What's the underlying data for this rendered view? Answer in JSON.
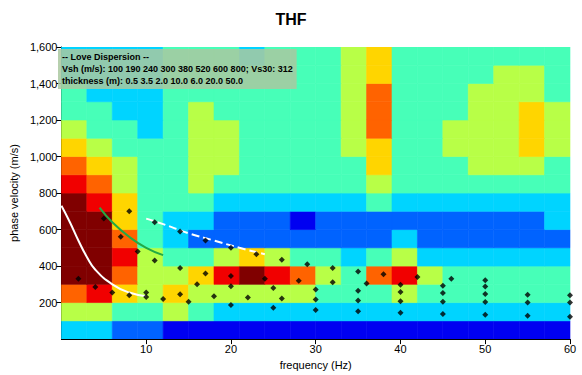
{
  "chart_data": {
    "type": "heatmap",
    "title": "THF",
    "xlabel": "frequency (Hz)",
    "ylabel": "phase velocity (m/s)",
    "annotations": [
      "-- Love Dispersion --",
      "Vsh (m/s): 100 190 240 300 380 520 600 800; Vs30: 312",
      "thickness (m): 0.5 3.5 2.0 10.0 6.0 20.0 50.0"
    ],
    "xlim": [
      0,
      60
    ],
    "ylim": [
      0,
      1600
    ],
    "xticks": [
      10,
      20,
      30,
      40,
      50,
      60
    ],
    "yticks": [
      200,
      400,
      600,
      800,
      1000,
      1200,
      1400,
      1600
    ],
    "grid": false,
    "heatmap": {
      "x_edges": [
        0,
        3,
        6,
        9,
        12,
        15,
        18,
        21,
        24,
        27,
        30,
        33,
        36,
        39,
        42,
        45,
        48,
        51,
        54,
        57,
        60
      ],
      "y_edges": [
        0,
        100,
        200,
        300,
        400,
        500,
        600,
        700,
        800,
        900,
        1000,
        1100,
        1200,
        1300,
        1400,
        1500,
        1600
      ],
      "zlim": [
        0,
        9
      ],
      "cells": [
        [
          3,
          3,
          2,
          2,
          1,
          1,
          1,
          1,
          1,
          1,
          1,
          1,
          1,
          1,
          1,
          1,
          1,
          1,
          1,
          1
        ],
        [
          5,
          5,
          4,
          4,
          5,
          4,
          3,
          3,
          3,
          3,
          3,
          3,
          3,
          3,
          3,
          3,
          3,
          3,
          3,
          3
        ],
        [
          7,
          8,
          6,
          5,
          6,
          5,
          5,
          5,
          5,
          5,
          4,
          4,
          4,
          5,
          4,
          4,
          4,
          4,
          4,
          4
        ],
        [
          9,
          9,
          7,
          5,
          5,
          6,
          8,
          9,
          8,
          7,
          5,
          4,
          7,
          8,
          5,
          4,
          4,
          4,
          4,
          4
        ],
        [
          9,
          9,
          8,
          5,
          4,
          4,
          5,
          6,
          5,
          4,
          4,
          3,
          4,
          5,
          3,
          3,
          3,
          3,
          3,
          3
        ],
        [
          9,
          9,
          7,
          4,
          3,
          2,
          2,
          2,
          2,
          2,
          2,
          2,
          2,
          3,
          2,
          2,
          2,
          2,
          2,
          2
        ],
        [
          9,
          9,
          6,
          4,
          3,
          3,
          2,
          2,
          2,
          1,
          2,
          2,
          2,
          2,
          2,
          2,
          2,
          2,
          2,
          3
        ],
        [
          9,
          8,
          6,
          4,
          4,
          4,
          3,
          3,
          3,
          3,
          3,
          3,
          4,
          3,
          3,
          3,
          3,
          3,
          3,
          3
        ],
        [
          8,
          7,
          5,
          4,
          4,
          5,
          4,
          4,
          4,
          4,
          4,
          4,
          5,
          4,
          4,
          4,
          4,
          4,
          4,
          4
        ],
        [
          7,
          6,
          5,
          4,
          4,
          5,
          5,
          4,
          4,
          4,
          4,
          4,
          6,
          4,
          4,
          4,
          5,
          5,
          5,
          4
        ],
        [
          6,
          5,
          4,
          4,
          4,
          5,
          5,
          4,
          4,
          4,
          4,
          5,
          6,
          4,
          4,
          5,
          5,
          5,
          6,
          5
        ],
        [
          5,
          4,
          4,
          3,
          4,
          5,
          5,
          4,
          4,
          4,
          4,
          5,
          7,
          4,
          4,
          5,
          5,
          5,
          6,
          5
        ],
        [
          4,
          4,
          3,
          3,
          4,
          5,
          4,
          4,
          4,
          4,
          4,
          5,
          7,
          4,
          4,
          4,
          5,
          5,
          6,
          5
        ],
        [
          4,
          3,
          3,
          3,
          4,
          4,
          4,
          4,
          4,
          4,
          4,
          5,
          7,
          4,
          4,
          4,
          5,
          5,
          5,
          4
        ],
        [
          3,
          3,
          3,
          3,
          4,
          4,
          4,
          4,
          4,
          4,
          4,
          5,
          6,
          4,
          4,
          4,
          4,
          5,
          5,
          4
        ],
        [
          3,
          3,
          3,
          3,
          4,
          4,
          4,
          3,
          4,
          4,
          4,
          5,
          6,
          4,
          4,
          4,
          4,
          4,
          4,
          4
        ]
      ]
    },
    "series": [
      {
        "type": "line",
        "line_style": "solid",
        "color": "#ffffff",
        "x": [
          0,
          1,
          2,
          3,
          4,
          6,
          8,
          10
        ],
        "values": [
          730,
          640,
          540,
          450,
          380,
          300,
          255,
          235
        ]
      },
      {
        "type": "line",
        "line_style": "dashed",
        "color": "#ffffff",
        "x": [
          10,
          12,
          15,
          18,
          21,
          24
        ],
        "values": [
          660,
          630,
          580,
          540,
          500,
          465
        ]
      },
      {
        "type": "line",
        "line_style": "solid",
        "color": "#22aa44",
        "x": [
          4.5,
          6,
          8,
          10,
          12
        ],
        "values": [
          720,
          640,
          560,
          500,
          460
        ]
      },
      {
        "type": "scatter",
        "marker": "diamond",
        "color": "#000000",
        "x": [
          2,
          4,
          6,
          8,
          10,
          12,
          15,
          20,
          25,
          30,
          35,
          40,
          45,
          50,
          55,
          60
        ],
        "values": [
          330,
          285,
          255,
          240,
          230,
          220,
          205,
          187,
          172,
          160,
          152,
          144,
          138,
          133,
          128,
          123
        ]
      },
      {
        "type": "scatter",
        "marker": "diamond",
        "color": "#000000",
        "x": [
          10,
          14,
          18,
          22,
          26,
          30,
          35,
          40,
          45,
          50,
          55,
          60
        ],
        "values": [
          255,
          245,
          235,
          228,
          222,
          217,
          212,
          208,
          205,
          203,
          201,
          200
        ]
      },
      {
        "type": "scatter",
        "marker": "diamond",
        "color": "#000000",
        "x": [
          16,
          20,
          25,
          30,
          35,
          40,
          45,
          50,
          55,
          60
        ],
        "values": [
          300,
          290,
          280,
          272,
          265,
          258,
          252,
          247,
          243,
          240
        ]
      },
      {
        "type": "scatter",
        "marker": "diamond",
        "color": "#000000",
        "x": [
          5,
          7,
          9,
          11,
          14,
          17,
          20,
          24,
          28,
          32,
          36,
          40,
          45,
          50
        ],
        "values": [
          660,
          560,
          480,
          430,
          390,
          360,
          345,
          330,
          320,
          312,
          305,
          298,
          292,
          288
        ]
      },
      {
        "type": "scatter",
        "marker": "diamond",
        "color": "#000000",
        "x": [
          8,
          11,
          14,
          17,
          20,
          23,
          26,
          29,
          32,
          35,
          38,
          42,
          46,
          50
        ],
        "values": [
          700,
          640,
          590,
          540,
          500,
          465,
          435,
          410,
          390,
          370,
          355,
          340,
          330,
          322
        ]
      }
    ]
  }
}
